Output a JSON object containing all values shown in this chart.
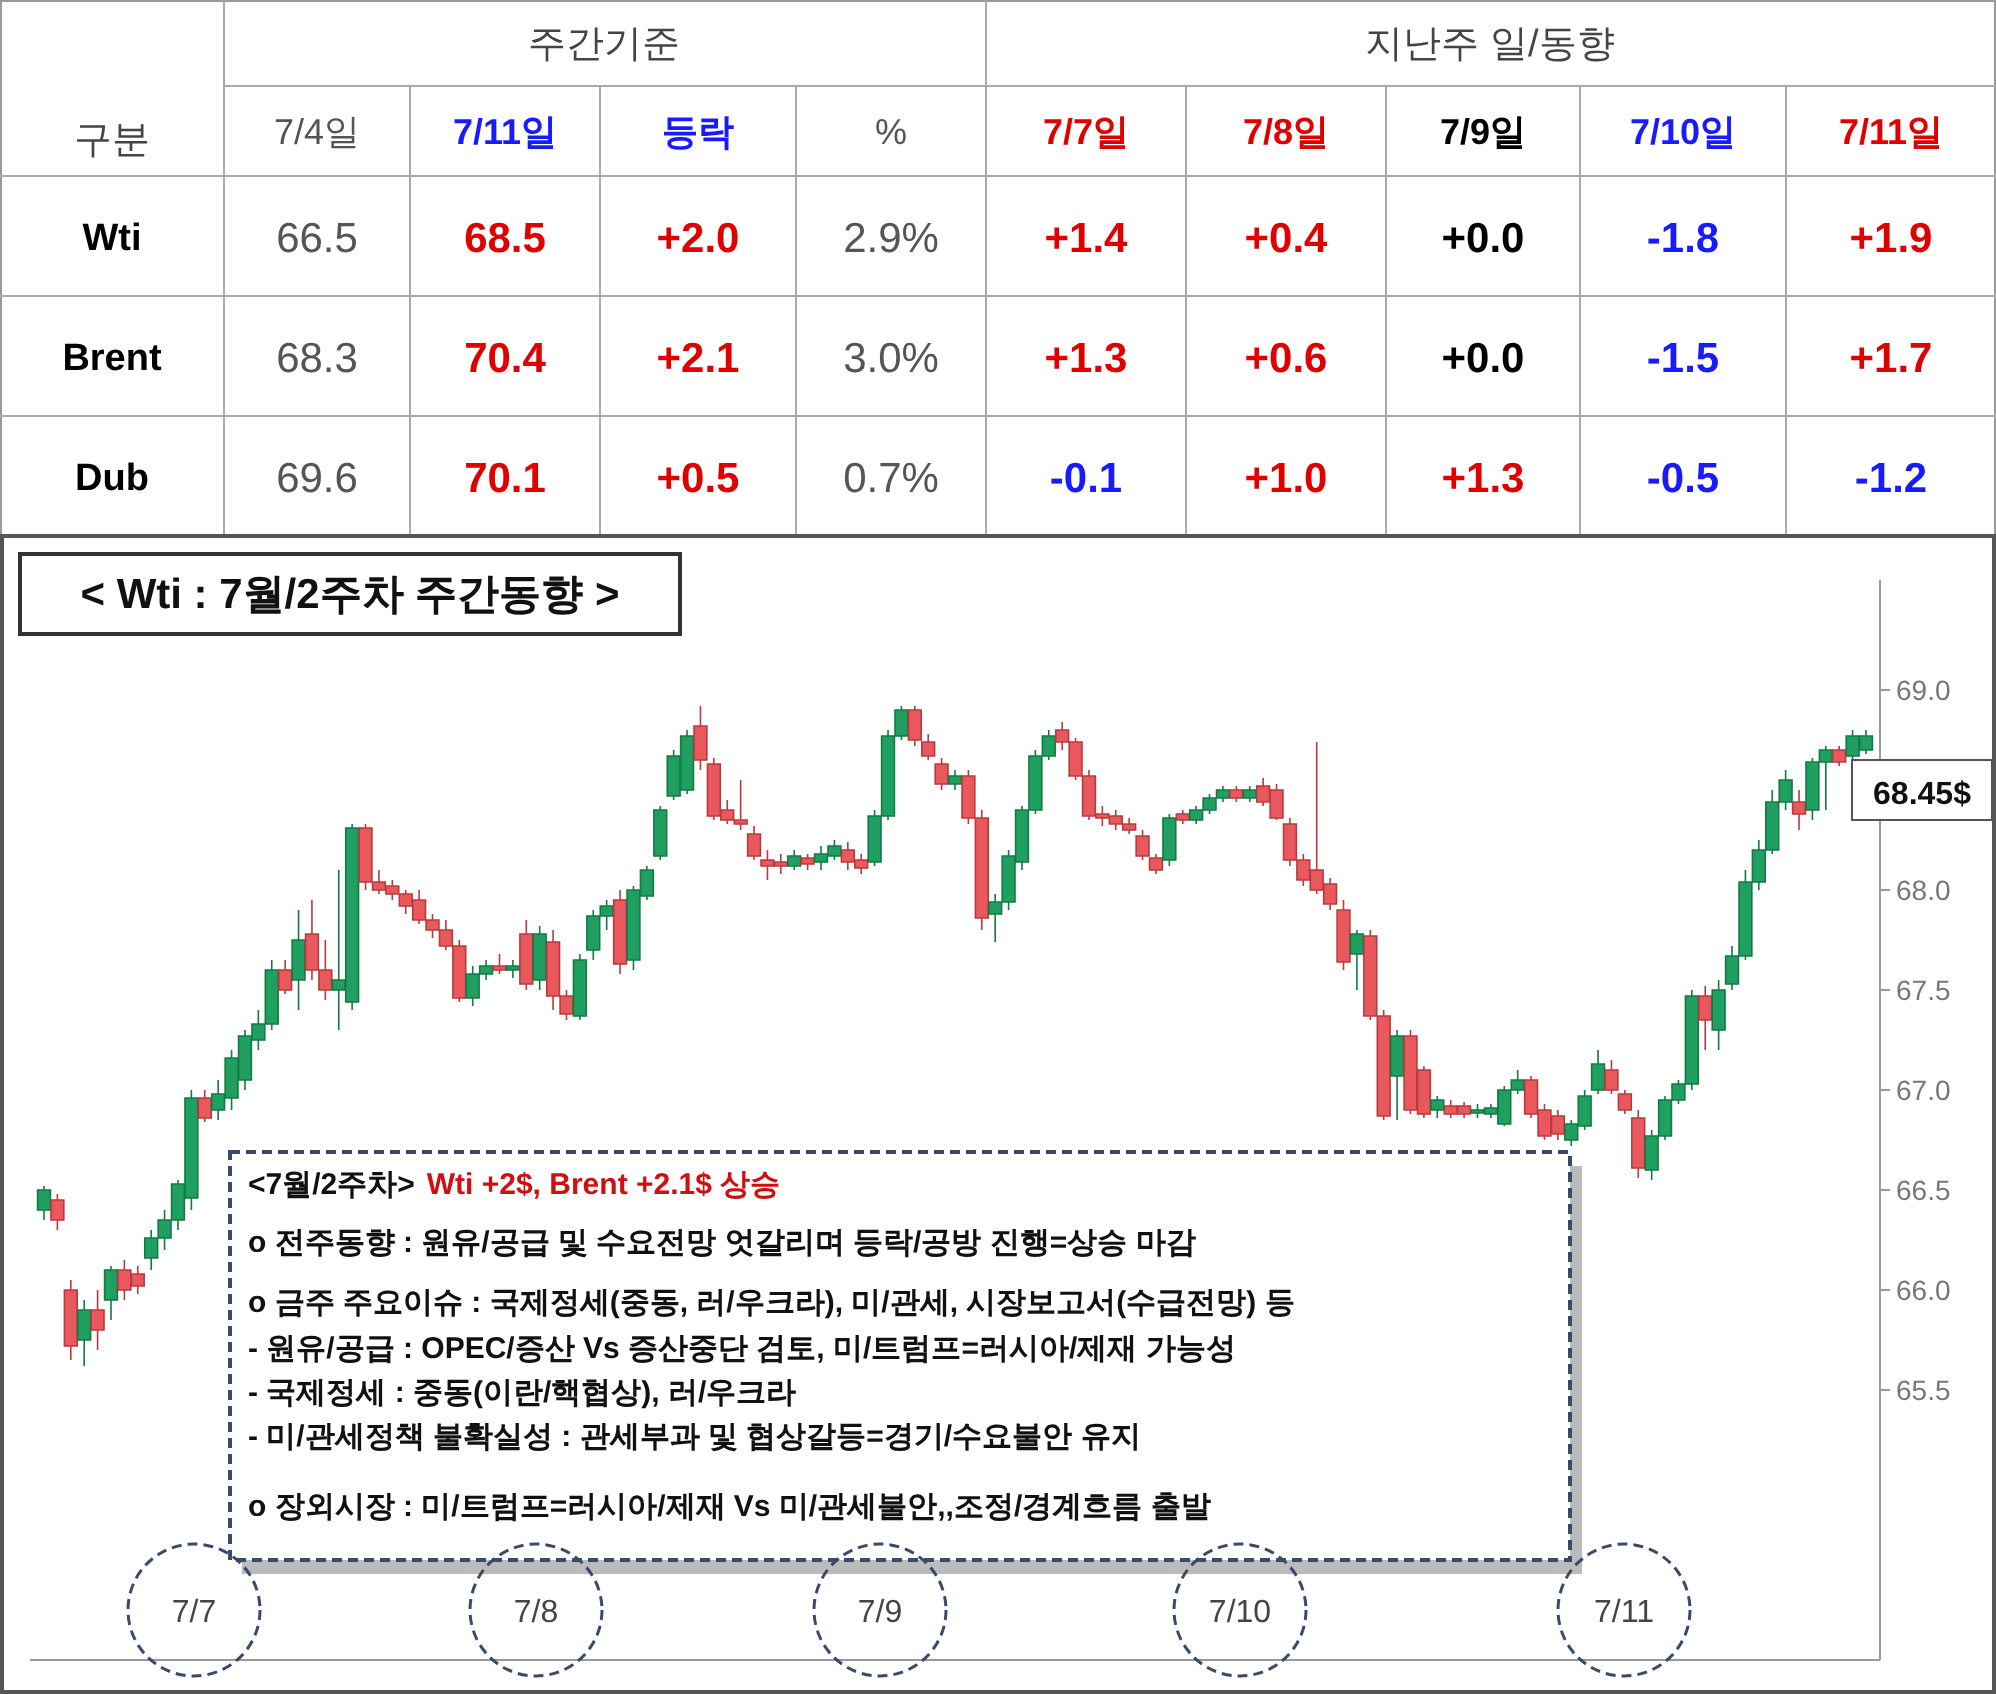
{
  "chart_data": [
    {
      "type": "heatmap",
      "categories": [
        "7/4일",
        "7/11일",
        "등락",
        "%",
        "7/7일",
        "7/8일",
        "7/9일",
        "7/10일",
        "7/11일"
      ],
      "y_categories": [
        "Wti",
        "Brent",
        "Dub"
      ],
      "cells": [
        [
          66.5,
          68.5,
          2.0,
          2.9,
          1.4,
          0.4,
          0.0,
          -1.8,
          1.9
        ],
        [
          68.3,
          70.4,
          2.1,
          3.0,
          1.3,
          0.6,
          0.0,
          -1.5,
          1.7
        ],
        [
          69.6,
          70.1,
          0.5,
          0.7,
          -0.1,
          1.0,
          1.3,
          -0.5,
          -1.2
        ]
      ],
      "cell_labels": [
        [
          "66.5",
          "68.5",
          "+2.0",
          "2.9%",
          "+1.4",
          "+0.4",
          "+0.0",
          "-1.8",
          "+1.9"
        ],
        [
          "68.3",
          "70.4",
          "+2.1",
          "3.0%",
          "+1.3",
          "+0.6",
          "+0.0",
          "-1.5",
          "+1.7"
        ],
        [
          "69.6",
          "70.1",
          "+0.5",
          "0.7%",
          "-0.1",
          "+1.0",
          "+1.3",
          "-0.5",
          "-1.2"
        ]
      ],
      "annotations": [
        "구분",
        "주간기준",
        "지난주 일/동향"
      ]
    },
    {
      "type": "candlestick",
      "title": "< Wti : 7월/2주차 주간동향 >",
      "categories": [
        null,
        null,
        null,
        null,
        null,
        null,
        null,
        null,
        null,
        null,
        null,
        null,
        null,
        null,
        null,
        null,
        null,
        null,
        null,
        null,
        null,
        null,
        null,
        null,
        null,
        null,
        null,
        null,
        null,
        null,
        null,
        null,
        null,
        null,
        null,
        null,
        null,
        null,
        null,
        null,
        null,
        null,
        null,
        null,
        null,
        null,
        null,
        null,
        null,
        null,
        null,
        null,
        null,
        null,
        null,
        null,
        null,
        null,
        null,
        null,
        null,
        null,
        null,
        null,
        null,
        null,
        null,
        null,
        null,
        null,
        null,
        null,
        null,
        null,
        null,
        null,
        null,
        null,
        null,
        null,
        null,
        null,
        null,
        null,
        null,
        null,
        null,
        null,
        null,
        null,
        null,
        null,
        null,
        null,
        null,
        null,
        null,
        null,
        null,
        null,
        null,
        null,
        null,
        null,
        null,
        null,
        null,
        null,
        null,
        null,
        null,
        null,
        null,
        null,
        null,
        null,
        null,
        null,
        null,
        null,
        null,
        null,
        null,
        null,
        null,
        null,
        null,
        null,
        null,
        null,
        null,
        null,
        null,
        null,
        null,
        null,
        null
      ],
      "ohlc": [
        [
          66.4,
          66.52,
          66.35,
          66.5
        ],
        [
          66.45,
          66.48,
          66.3,
          66.35
        ],
        [
          66.0,
          66.05,
          65.65,
          65.72
        ],
        [
          65.75,
          65.95,
          65.62,
          65.9
        ],
        [
          65.9,
          66.0,
          65.7,
          65.8
        ],
        [
          65.95,
          66.12,
          65.85,
          66.1
        ],
        [
          66.1,
          66.15,
          65.95,
          66.0
        ],
        [
          66.08,
          66.12,
          65.98,
          66.02
        ],
        [
          66.16,
          66.3,
          66.1,
          66.26
        ],
        [
          66.26,
          66.4,
          66.2,
          66.35
        ],
        [
          66.35,
          66.55,
          66.3,
          66.53
        ],
        [
          66.46,
          67.0,
          66.4,
          66.96
        ],
        [
          66.96,
          67.0,
          66.84,
          66.86
        ],
        [
          66.9,
          67.05,
          66.85,
          66.98
        ],
        [
          66.96,
          67.2,
          66.9,
          67.16
        ],
        [
          67.05,
          67.3,
          67.0,
          67.27
        ],
        [
          67.25,
          67.4,
          67.2,
          67.33
        ],
        [
          67.33,
          67.65,
          67.3,
          67.6
        ],
        [
          67.6,
          67.65,
          67.48,
          67.5
        ],
        [
          67.55,
          67.9,
          67.4,
          67.75
        ],
        [
          67.78,
          67.95,
          67.55,
          67.6
        ],
        [
          67.6,
          67.75,
          67.45,
          67.5
        ],
        [
          67.5,
          68.1,
          67.3,
          67.55
        ],
        [
          67.44,
          68.33,
          67.4,
          68.31
        ],
        [
          68.31,
          68.33,
          68.0,
          68.04
        ],
        [
          68.04,
          68.1,
          67.98,
          68.0
        ],
        [
          68.02,
          68.05,
          67.95,
          67.98
        ],
        [
          67.98,
          68.0,
          67.88,
          67.92
        ],
        [
          67.95,
          68.0,
          67.83,
          67.85
        ],
        [
          67.85,
          67.88,
          67.76,
          67.8
        ],
        [
          67.8,
          67.85,
          67.7,
          67.72
        ],
        [
          67.72,
          67.75,
          67.44,
          67.46
        ],
        [
          67.46,
          67.62,
          67.42,
          67.58
        ],
        [
          67.58,
          67.65,
          67.55,
          67.62
        ],
        [
          67.62,
          67.68,
          67.58,
          67.6
        ],
        [
          67.6,
          67.65,
          67.56,
          67.62
        ],
        [
          67.78,
          67.85,
          67.5,
          67.53
        ],
        [
          67.55,
          67.82,
          67.5,
          67.78
        ],
        [
          67.74,
          67.8,
          67.4,
          67.47
        ],
        [
          67.47,
          67.5,
          67.35,
          67.38
        ],
        [
          67.37,
          67.68,
          67.35,
          67.65
        ],
        [
          67.7,
          67.9,
          67.65,
          67.87
        ],
        [
          67.87,
          67.95,
          67.8,
          67.92
        ],
        [
          67.95,
          68.0,
          67.58,
          67.63
        ],
        [
          67.65,
          68.02,
          67.6,
          68.0
        ],
        [
          67.97,
          68.12,
          67.95,
          68.1
        ],
        [
          68.17,
          68.42,
          68.15,
          68.4
        ],
        [
          68.47,
          68.7,
          68.45,
          68.67
        ],
        [
          68.5,
          68.8,
          68.48,
          68.77
        ],
        [
          68.82,
          68.92,
          68.6,
          68.65
        ],
        [
          68.63,
          68.66,
          68.35,
          68.37
        ],
        [
          68.4,
          68.45,
          68.33,
          68.35
        ],
        [
          68.35,
          68.55,
          68.3,
          68.33
        ],
        [
          68.28,
          68.32,
          68.15,
          68.17
        ],
        [
          68.15,
          68.2,
          68.05,
          68.12
        ],
        [
          68.14,
          68.18,
          68.08,
          68.12
        ],
        [
          68.12,
          68.2,
          68.1,
          68.17
        ],
        [
          68.16,
          68.18,
          68.1,
          68.13
        ],
        [
          68.14,
          68.22,
          68.1,
          68.18
        ],
        [
          68.17,
          68.25,
          68.15,
          68.22
        ],
        [
          68.2,
          68.24,
          68.1,
          68.14
        ],
        [
          68.15,
          68.18,
          68.08,
          68.11
        ],
        [
          68.14,
          68.4,
          68.12,
          68.37
        ],
        [
          68.37,
          68.8,
          68.35,
          68.77
        ],
        [
          68.77,
          68.92,
          68.75,
          68.9
        ],
        [
          68.9,
          68.92,
          68.72,
          68.75
        ],
        [
          68.74,
          68.78,
          68.65,
          68.67
        ],
        [
          68.63,
          68.66,
          68.5,
          68.53
        ],
        [
          68.53,
          68.6,
          68.5,
          68.57
        ],
        [
          68.57,
          68.6,
          68.33,
          68.36
        ],
        [
          68.36,
          68.4,
          67.8,
          67.86
        ],
        [
          67.88,
          67.98,
          67.74,
          67.94
        ],
        [
          67.94,
          68.2,
          67.9,
          68.17
        ],
        [
          68.14,
          68.42,
          68.1,
          68.4
        ],
        [
          68.4,
          68.7,
          68.38,
          68.67
        ],
        [
          68.67,
          68.8,
          68.65,
          68.77
        ],
        [
          68.8,
          68.84,
          68.7,
          68.74
        ],
        [
          68.74,
          68.76,
          68.55,
          68.57
        ],
        [
          68.57,
          68.6,
          68.35,
          68.37
        ],
        [
          68.38,
          68.42,
          68.32,
          68.36
        ],
        [
          68.37,
          68.4,
          68.3,
          68.33
        ],
        [
          68.33,
          68.36,
          68.28,
          68.3
        ],
        [
          68.27,
          68.3,
          68.15,
          68.17
        ],
        [
          68.16,
          68.18,
          68.08,
          68.1
        ],
        [
          68.15,
          68.38,
          68.12,
          68.36
        ],
        [
          68.38,
          68.4,
          68.33,
          68.35
        ],
        [
          68.35,
          68.42,
          68.33,
          68.4
        ],
        [
          68.4,
          68.48,
          68.38,
          68.46
        ],
        [
          68.46,
          68.52,
          68.44,
          68.5
        ],
        [
          68.5,
          68.52,
          68.44,
          68.46
        ],
        [
          68.46,
          68.52,
          68.44,
          68.5
        ],
        [
          68.52,
          68.56,
          68.42,
          68.44
        ],
        [
          68.5,
          68.53,
          68.35,
          68.36
        ],
        [
          68.33,
          68.36,
          68.12,
          68.15
        ],
        [
          68.15,
          68.18,
          68.02,
          68.05
        ],
        [
          68.1,
          68.74,
          67.98,
          68.0
        ],
        [
          68.03,
          68.06,
          67.9,
          67.93
        ],
        [
          67.9,
          67.95,
          67.6,
          67.64
        ],
        [
          67.68,
          67.8,
          67.5,
          67.78
        ],
        [
          67.77,
          67.8,
          67.35,
          67.37
        ],
        [
          67.37,
          67.4,
          66.85,
          66.87
        ],
        [
          67.07,
          67.3,
          66.85,
          67.27
        ],
        [
          67.27,
          67.3,
          66.88,
          66.9
        ],
        [
          67.1,
          67.12,
          66.86,
          66.88
        ],
        [
          66.9,
          66.97,
          66.86,
          66.95
        ],
        [
          66.92,
          66.95,
          66.86,
          66.88
        ],
        [
          66.92,
          66.94,
          66.86,
          66.88
        ],
        [
          66.89,
          66.93,
          66.86,
          66.9
        ],
        [
          66.88,
          66.93,
          66.86,
          66.91
        ],
        [
          66.83,
          67.02,
          66.82,
          67.0
        ],
        [
          67.0,
          67.1,
          66.98,
          67.05
        ],
        [
          67.05,
          67.07,
          66.86,
          66.88
        ],
        [
          66.9,
          66.93,
          66.75,
          66.77
        ],
        [
          66.87,
          66.9,
          66.75,
          66.78
        ],
        [
          66.75,
          66.85,
          66.72,
          66.83
        ],
        [
          66.82,
          67.0,
          66.8,
          66.97
        ],
        [
          67.0,
          67.2,
          66.98,
          67.13
        ],
        [
          67.1,
          67.15,
          66.98,
          67.0
        ],
        [
          66.98,
          67.0,
          66.88,
          66.9
        ],
        [
          66.86,
          66.9,
          66.56,
          66.61
        ],
        [
          66.6,
          66.8,
          66.55,
          66.77
        ],
        [
          66.77,
          66.97,
          66.75,
          66.95
        ],
        [
          66.95,
          67.05,
          66.93,
          67.03
        ],
        [
          67.03,
          67.5,
          67.0,
          67.47
        ],
        [
          67.47,
          67.52,
          67.2,
          67.35
        ],
        [
          67.3,
          67.55,
          67.2,
          67.5
        ],
        [
          67.53,
          67.72,
          67.5,
          67.67
        ],
        [
          67.67,
          68.1,
          67.65,
          68.04
        ],
        [
          68.04,
          68.25,
          68.0,
          68.2
        ],
        [
          68.2,
          68.5,
          68.18,
          68.44
        ],
        [
          68.44,
          68.6,
          68.4,
          68.55
        ],
        [
          68.44,
          68.5,
          68.3,
          68.38
        ],
        [
          68.4,
          68.66,
          68.35,
          68.64
        ],
        [
          68.64,
          68.72,
          68.4,
          68.7
        ],
        [
          68.7,
          68.72,
          68.62,
          68.64
        ],
        [
          68.67,
          68.8,
          68.65,
          68.77
        ],
        [
          68.7,
          68.8,
          68.68,
          68.77
        ]
      ],
      "ylim": [
        64.15,
        69.55
      ],
      "yticks": [
        {
          "value": 65.5,
          "label": "65.5"
        },
        {
          "value": 66,
          "label": "66.0"
        },
        {
          "value": 66.5,
          "label": "66.5"
        },
        {
          "value": 67,
          "label": "67.0"
        },
        {
          "value": 67.5,
          "label": "67.5"
        },
        {
          "value": 68,
          "label": "68.0"
        },
        {
          "value": 68.5,
          "label": null
        },
        {
          "value": 69,
          "label": "69.0"
        }
      ],
      "annotations": [
        "68.45$",
        "<7월/2주차>",
        "Wti +2$, Brent +2.1$ 상승",
        "o 전주동향 : 원유/공급 및 수요전망 엇갈리며 등락/공방 진행=상승 마감",
        "o 금주 주요이슈 : 국제정세(중동, 러/우크라), 미/관세, 시장보고서(수급전망) 등",
        " - 원유/공급 : OPEC/증산 Vs 증산중단 검토, 미/트럼프=러시아/제재 가능성",
        " - 국제정세 : 중동(이란/핵협상), 러/우크라",
        " - 미/관세정책 불확실성 : 관세부과 및 협상갈등=경기/수요불안 유지",
        "o 장외시장 : 미/트럼프=러시아/제재 Vs 미/관세불안,,조정/경계흐름 출발",
        "7/7",
        "7/8",
        "7/9",
        "7/10",
        "7/11"
      ]
    }
  ]
}
